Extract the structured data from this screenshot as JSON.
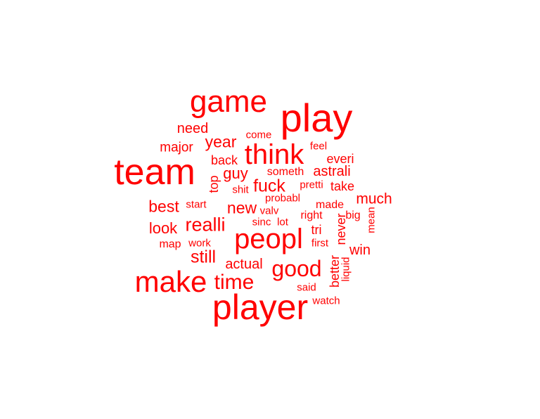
{
  "palette": {
    "word_color": "#ff0000",
    "background": "#ffffff"
  },
  "words": [
    {
      "text": "player",
      "weight": 1.0
    },
    {
      "text": "team",
      "weight": 1.0
    },
    {
      "text": "play",
      "weight": 1.0
    },
    {
      "text": "game",
      "weight": 0.85
    },
    {
      "text": "make",
      "weight": 0.82
    },
    {
      "text": "peopl",
      "weight": 0.8
    },
    {
      "text": "think",
      "weight": 0.78
    },
    {
      "text": "good",
      "weight": 0.6
    },
    {
      "text": "time",
      "weight": 0.58
    },
    {
      "text": "realli",
      "weight": 0.55
    },
    {
      "text": "fuck",
      "weight": 0.5
    },
    {
      "text": "still",
      "weight": 0.47
    },
    {
      "text": "year",
      "weight": 0.45
    },
    {
      "text": "new",
      "weight": 0.42
    },
    {
      "text": "best",
      "weight": 0.42
    },
    {
      "text": "look",
      "weight": 0.42
    },
    {
      "text": "guy",
      "weight": 0.42
    },
    {
      "text": "much",
      "weight": 0.4
    },
    {
      "text": "actual",
      "weight": 0.38
    },
    {
      "text": "astrali",
      "weight": 0.38
    },
    {
      "text": "need",
      "weight": 0.36
    },
    {
      "text": "win",
      "weight": 0.36
    },
    {
      "text": "major",
      "weight": 0.34
    },
    {
      "text": "back",
      "weight": 0.34
    },
    {
      "text": "everi",
      "weight": 0.33
    },
    {
      "text": "take",
      "weight": 0.33
    },
    {
      "text": "never",
      "weight": 0.33,
      "rotate": true
    },
    {
      "text": "better",
      "weight": 0.32,
      "rotate": true
    },
    {
      "text": "top",
      "weight": 0.32,
      "rotate": true
    },
    {
      "text": "tri",
      "weight": 0.3
    },
    {
      "text": "someth",
      "weight": 0.3
    },
    {
      "text": "made",
      "weight": 0.29
    },
    {
      "text": "right",
      "weight": 0.29
    },
    {
      "text": "big",
      "weight": 0.29
    },
    {
      "text": "map",
      "weight": 0.29
    },
    {
      "text": "start",
      "weight": 0.28
    },
    {
      "text": "work",
      "weight": 0.28
    },
    {
      "text": "first",
      "weight": 0.28
    },
    {
      "text": "probabl",
      "weight": 0.27
    },
    {
      "text": "pretti",
      "weight": 0.27
    },
    {
      "text": "shit",
      "weight": 0.27
    },
    {
      "text": "lot",
      "weight": 0.27
    },
    {
      "text": "sinc",
      "weight": 0.26
    },
    {
      "text": "feel",
      "weight": 0.26
    },
    {
      "text": "come",
      "weight": 0.26
    },
    {
      "text": "valv",
      "weight": 0.26
    },
    {
      "text": "said",
      "weight": 0.26
    },
    {
      "text": "watch",
      "weight": 0.26
    },
    {
      "text": "mean",
      "weight": 0.26,
      "rotate": true
    },
    {
      "text": "liquid",
      "weight": 0.26,
      "rotate": true
    }
  ]
}
